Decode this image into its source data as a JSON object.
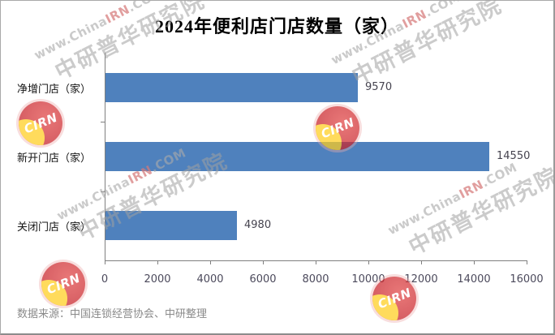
{
  "title": "2024年便利店门店数量（家）",
  "source": "数据来源：中国连锁经营协会、中研整理",
  "watermark": {
    "url_prefix": "www.China",
    "url_accent": "IRN",
    "url_suffix": ".COM",
    "org": "中研普华研究院",
    "logo_text": "CIRN"
  },
  "colors": {
    "bar": "#4f81bd",
    "axis": "#808080",
    "tick_label": "#4c4a5c",
    "value_label": "#45434f",
    "source_text": "#8a8a8a",
    "logo_red": "#c72128"
  },
  "chart_data": {
    "type": "bar",
    "orientation": "horizontal",
    "title": "2024年便利店门店数量（家）",
    "categories": [
      "净增门店（家）",
      "新开门店（家）",
      "关闭门店（家）"
    ],
    "values": [
      9570,
      14550,
      4980
    ],
    "xlabel": "",
    "ylabel": "",
    "xlim": [
      0,
      16000
    ],
    "x_ticks": [
      0,
      2000,
      4000,
      6000,
      8000,
      10000,
      12000,
      14000,
      16000
    ],
    "grid": false,
    "legend": false,
    "data_labels": true,
    "bar_color": "#4f81bd"
  }
}
